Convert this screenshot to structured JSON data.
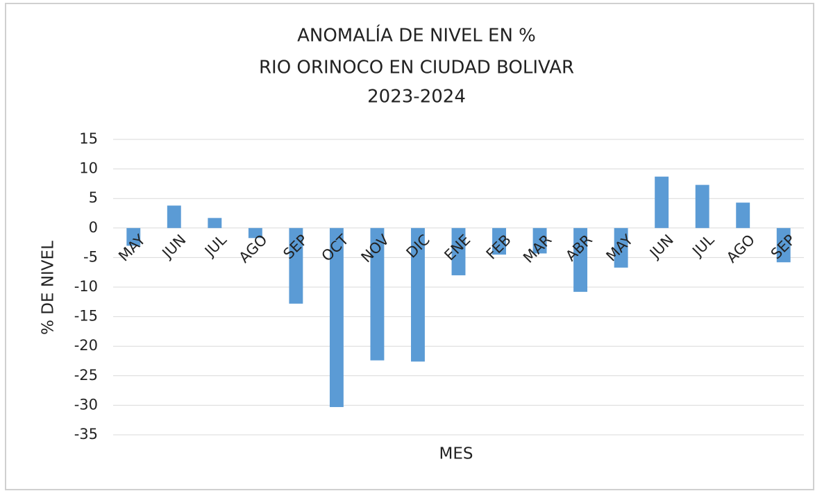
{
  "chart_data": {
    "type": "bar",
    "title": [
      "ANOMALÍA DE NIVEL EN %",
      "RIO ORINOCO EN CIUDAD BOLIVAR",
      "2023-2024"
    ],
    "x_label": "MES",
    "y_label": "% DE NIVEL",
    "categories": [
      "MAY",
      "JUN",
      "JUL",
      "AGO",
      "SEP",
      "OCT",
      "NOV",
      "DIC",
      "ENE",
      "FEB",
      "MAR",
      "ABR",
      "MAY",
      "JUN",
      "JUL",
      "AGO",
      "SEP"
    ],
    "values": [
      -3,
      3.8,
      1.7,
      -1.7,
      -12.8,
      -30.3,
      -22.4,
      -22.6,
      -8,
      -4.5,
      -4.3,
      -10.8,
      -6.7,
      8.7,
      7.3,
      4.3,
      -5.8
    ],
    "color": "#5b9bd5",
    "ylim": [
      -35,
      15
    ],
    "yticks": [
      -35,
      -30,
      -25,
      -20,
      -15,
      -10,
      -5,
      0,
      5,
      10,
      15
    ],
    "grid": true
  }
}
